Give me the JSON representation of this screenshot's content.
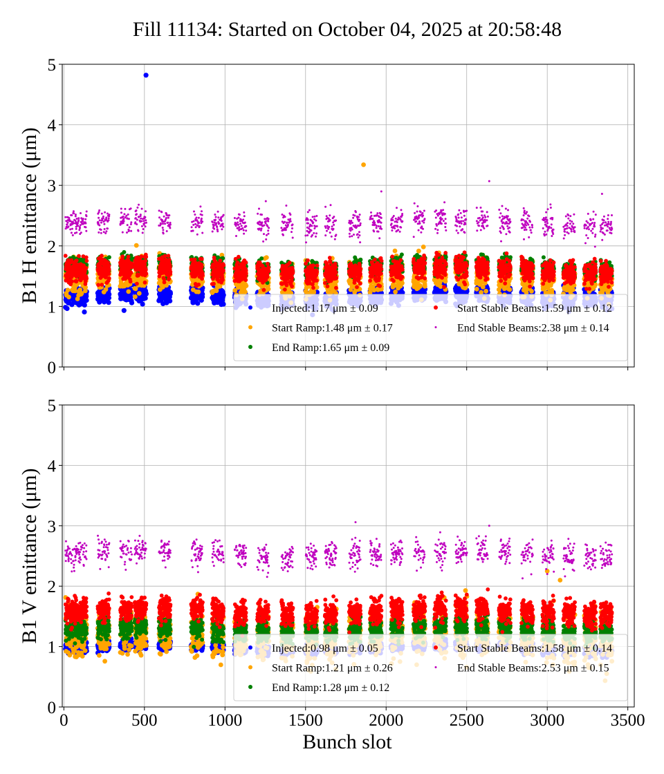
{
  "figure": {
    "title": "Fill 11134: Started on October 04, 2025 at 20:58:48",
    "xlabel": "Bunch slot"
  },
  "colors": {
    "injected": "#0000ff",
    "start_ramp": "#ffa500",
    "end_ramp": "#008000",
    "start_stable": "#ff0000",
    "end_stable": "#bf00bf",
    "grid": "#b0b0b0"
  },
  "chart_data": [
    {
      "type": "scatter",
      "ylabel": "B1 H emittance (μm)",
      "xlim": [
        -10,
        3540
      ],
      "ylim": [
        0,
        5
      ],
      "xticks": [
        0,
        500,
        1000,
        1500,
        2000,
        2500,
        3000,
        3500
      ],
      "yticks": [
        0,
        1,
        2,
        3,
        4,
        5
      ],
      "grid": true,
      "legend_position": "lower-right",
      "train_starts": [
        10,
        70,
        210,
        350,
        440,
        590,
        790,
        920,
        1060,
        1200,
        1350,
        1500,
        1620,
        1770,
        1900,
        2030,
        2170,
        2300,
        2430,
        2560,
        2700,
        2840,
        2970,
        3100,
        3230,
        3330
      ],
      "train_length": 72,
      "series": [
        {
          "name": "Injected",
          "key": "injected",
          "mean": 1.17,
          "std": 0.09,
          "legend": "Injected:1.17 μm ± 0.09",
          "outliers": [
            [
              510,
              4.82
            ]
          ]
        },
        {
          "name": "Start Ramp",
          "key": "start_ramp",
          "mean": 1.48,
          "std": 0.17,
          "legend": "Start Ramp:1.48 μm ± 0.17",
          "outliers": [
            [
              1860,
              3.34
            ]
          ]
        },
        {
          "name": "End Ramp",
          "key": "end_ramp",
          "mean": 1.65,
          "std": 0.09,
          "legend": "End Ramp:1.65 μm ± 0.09",
          "outliers": []
        },
        {
          "name": "Start Stable Beams",
          "key": "start_stable",
          "mean": 1.59,
          "std": 0.12,
          "legend": "Start Stable Beams:1.59 μm ± 0.12",
          "outliers": []
        },
        {
          "name": "End Stable Beams",
          "key": "end_stable",
          "mean": 2.38,
          "std": 0.14,
          "legend": "End Stable Beams:2.38 μm ± 0.14",
          "outliers": [
            [
              2640,
              3.07
            ],
            [
              1970,
              2.9
            ],
            [
              3340,
              2.86
            ]
          ]
        }
      ]
    },
    {
      "type": "scatter",
      "ylabel": "B1 V emittance (μm)",
      "xlim": [
        -10,
        3540
      ],
      "ylim": [
        0,
        5
      ],
      "xticks": [
        0,
        500,
        1000,
        1500,
        2000,
        2500,
        3000,
        3500
      ],
      "yticks": [
        0,
        1,
        2,
        3,
        4,
        5
      ],
      "grid": true,
      "legend_position": "lower-right",
      "train_starts": [
        10,
        70,
        210,
        350,
        440,
        590,
        790,
        920,
        1060,
        1200,
        1350,
        1500,
        1620,
        1770,
        1900,
        2030,
        2170,
        2300,
        2430,
        2560,
        2700,
        2840,
        2970,
        3100,
        3230,
        3330
      ],
      "train_length": 72,
      "series": [
        {
          "name": "Injected",
          "key": "injected",
          "mean": 0.98,
          "std": 0.05,
          "legend": "Injected:0.98 μm ± 0.05",
          "outliers": []
        },
        {
          "name": "Start Ramp",
          "key": "start_ramp",
          "mean": 1.21,
          "std": 0.26,
          "legend": "Start Ramp:1.21 μm ± 0.26",
          "outliers": [
            [
              3000,
              2.25
            ],
            [
              3080,
              2.1
            ]
          ]
        },
        {
          "name": "End Ramp",
          "key": "end_ramp",
          "mean": 1.28,
          "std": 0.12,
          "legend": "End Ramp:1.28 μm ± 0.12",
          "outliers": []
        },
        {
          "name": "Start Stable Beams",
          "key": "start_stable",
          "mean": 1.58,
          "std": 0.14,
          "legend": "Start Stable Beams:1.58 μm ± 0.14",
          "outliers": []
        },
        {
          "name": "End Stable Beams",
          "key": "end_stable",
          "mean": 2.53,
          "std": 0.15,
          "legend": "End Stable Beams:2.53 μm ± 0.15",
          "outliers": [
            [
              1810,
              3.06
            ],
            [
              2640,
              3.0
            ]
          ]
        }
      ]
    }
  ]
}
